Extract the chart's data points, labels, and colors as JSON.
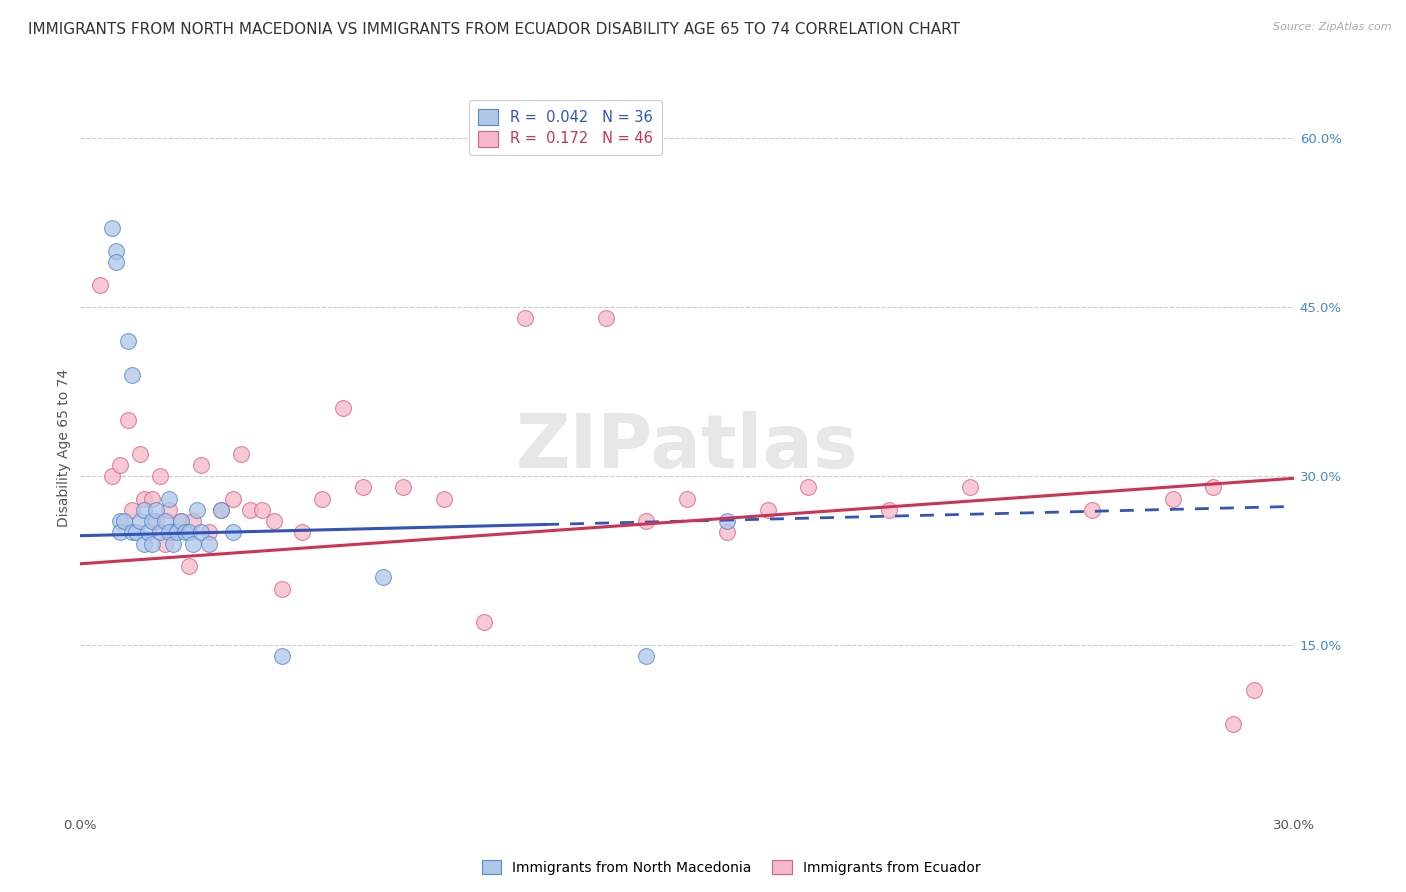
{
  "title": "IMMIGRANTS FROM NORTH MACEDONIA VS IMMIGRANTS FROM ECUADOR DISABILITY AGE 65 TO 74 CORRELATION CHART",
  "source": "Source: ZipAtlas.com",
  "ylabel": "Disability Age 65 to 74",
  "xlim": [
    0.0,
    0.3
  ],
  "ylim": [
    0.0,
    0.65
  ],
  "y_ticks_right": [
    0.15,
    0.3,
    0.45,
    0.6
  ],
  "y_tick_labels_right": [
    "15.0%",
    "30.0%",
    "45.0%",
    "60.0%"
  ],
  "r_blue": 0.042,
  "n_blue": 36,
  "r_pink": 0.172,
  "n_pink": 46,
  "blue_fill": "#aec6e8",
  "pink_fill": "#f5b8c8",
  "blue_edge": "#5588cc",
  "pink_edge": "#e06080",
  "blue_line_color": "#3355bb",
  "pink_line_color": "#cc3355",
  "legend_label_blue": "Immigrants from North Macedonia",
  "legend_label_pink": "Immigrants from Ecuador",
  "blue_scatter_x": [
    0.008,
    0.009,
    0.009,
    0.01,
    0.01,
    0.011,
    0.012,
    0.013,
    0.013,
    0.014,
    0.015,
    0.016,
    0.016,
    0.017,
    0.018,
    0.018,
    0.019,
    0.02,
    0.021,
    0.022,
    0.022,
    0.023,
    0.024,
    0.025,
    0.026,
    0.027,
    0.028,
    0.029,
    0.03,
    0.032,
    0.035,
    0.038,
    0.05,
    0.075,
    0.14,
    0.16
  ],
  "blue_scatter_y": [
    0.52,
    0.5,
    0.49,
    0.26,
    0.25,
    0.26,
    0.42,
    0.25,
    0.39,
    0.25,
    0.26,
    0.24,
    0.27,
    0.25,
    0.26,
    0.24,
    0.27,
    0.25,
    0.26,
    0.25,
    0.28,
    0.24,
    0.25,
    0.26,
    0.25,
    0.25,
    0.24,
    0.27,
    0.25,
    0.24,
    0.27,
    0.25,
    0.14,
    0.21,
    0.14,
    0.26
  ],
  "pink_scatter_x": [
    0.005,
    0.008,
    0.01,
    0.012,
    0.013,
    0.015,
    0.016,
    0.018,
    0.019,
    0.02,
    0.021,
    0.022,
    0.023,
    0.025,
    0.027,
    0.028,
    0.03,
    0.032,
    0.035,
    0.038,
    0.04,
    0.042,
    0.045,
    0.048,
    0.05,
    0.055,
    0.06,
    0.065,
    0.07,
    0.08,
    0.09,
    0.1,
    0.11,
    0.13,
    0.14,
    0.15,
    0.16,
    0.17,
    0.18,
    0.2,
    0.22,
    0.25,
    0.27,
    0.28,
    0.285,
    0.29
  ],
  "pink_scatter_y": [
    0.47,
    0.3,
    0.31,
    0.35,
    0.27,
    0.32,
    0.28,
    0.28,
    0.26,
    0.3,
    0.24,
    0.27,
    0.25,
    0.26,
    0.22,
    0.26,
    0.31,
    0.25,
    0.27,
    0.28,
    0.32,
    0.27,
    0.27,
    0.26,
    0.2,
    0.25,
    0.28,
    0.36,
    0.29,
    0.29,
    0.28,
    0.17,
    0.44,
    0.44,
    0.26,
    0.28,
    0.25,
    0.27,
    0.29,
    0.27,
    0.29,
    0.27,
    0.28,
    0.29,
    0.08,
    0.11
  ],
  "blue_line_x_start": 0.0,
  "blue_line_x_solid_end": 0.115,
  "blue_line_x_end": 0.3,
  "blue_line_y_start": 0.247,
  "blue_line_y_end": 0.273,
  "pink_line_x_start": 0.0,
  "pink_line_x_end": 0.3,
  "pink_line_y_start": 0.222,
  "pink_line_y_end": 0.298,
  "background_color": "#ffffff",
  "grid_color": "#cccccc",
  "title_fontsize": 11,
  "axis_fontsize": 10,
  "tick_fontsize": 9.5
}
